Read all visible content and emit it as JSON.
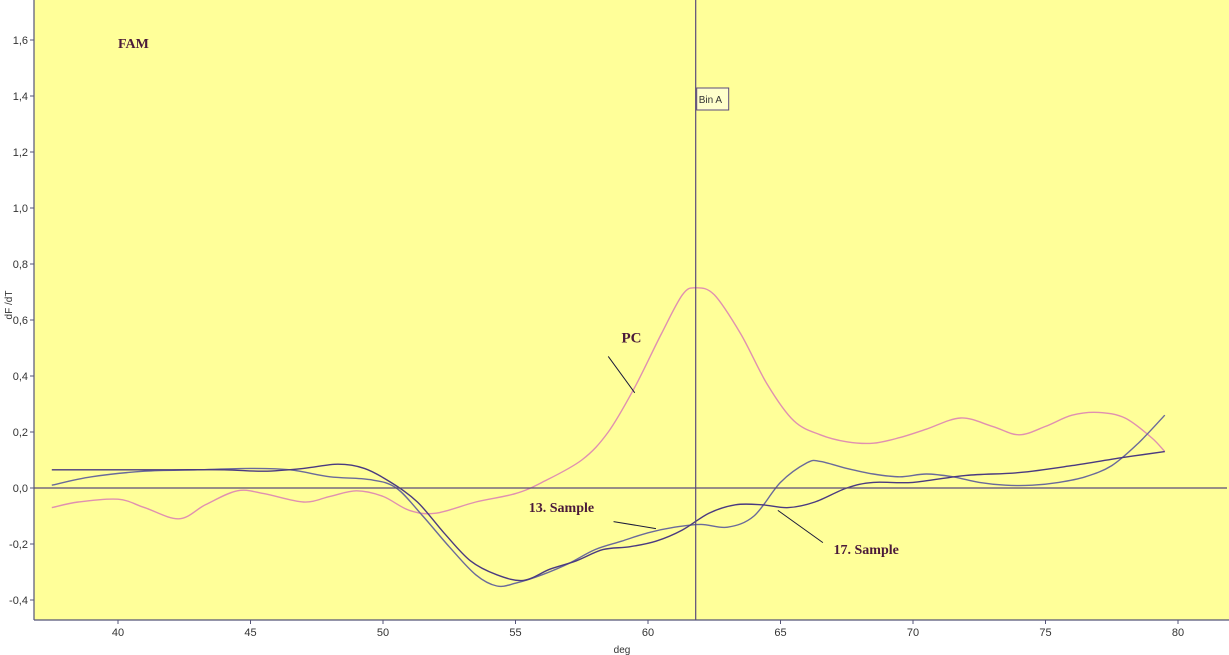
{
  "chart_data": {
    "type": "line",
    "title": "FAM",
    "xlabel": "deg",
    "ylabel": "dF /dT",
    "xlim": [
      37.5,
      80.8
    ],
    "ylim": [
      -0.47,
      1.7
    ],
    "x_ticks": [
      40,
      45,
      50,
      55,
      60,
      65,
      70,
      75,
      80
    ],
    "x_tick_labels": [
      "40",
      "45",
      "50",
      "55",
      "60",
      "65",
      "70",
      "75",
      "80"
    ],
    "y_ticks": [
      -0.4,
      -0.2,
      0.0,
      0.2,
      0.4,
      0.6,
      0.8,
      1.0,
      1.2,
      1.4,
      1.6
    ],
    "y_tick_labels": [
      "-0,4",
      "-0,2",
      "0,0",
      "0,2",
      "0,4",
      "0,6",
      "0,8",
      "1,0",
      "1,2",
      "1,4",
      "1,6"
    ],
    "grid": false,
    "background": "#ffff99",
    "marker": {
      "label": "Bin A",
      "x": 61.8
    },
    "zero_line": 0.0,
    "series": [
      {
        "name": "PC",
        "color": "#e090b0",
        "points": [
          [
            37.5,
            -0.07
          ],
          [
            38.5,
            -0.05
          ],
          [
            40,
            -0.04
          ],
          [
            41,
            -0.07
          ],
          [
            42.3,
            -0.11
          ],
          [
            43.3,
            -0.06
          ],
          [
            44.5,
            -0.01
          ],
          [
            45.5,
            -0.02
          ],
          [
            47,
            -0.05
          ],
          [
            48,
            -0.03
          ],
          [
            49,
            -0.01
          ],
          [
            50,
            -0.03
          ],
          [
            51,
            -0.08
          ],
          [
            52,
            -0.09
          ],
          [
            53.5,
            -0.05
          ],
          [
            55,
            -0.02
          ],
          [
            56,
            0.02
          ],
          [
            57.5,
            0.1
          ],
          [
            58.5,
            0.2
          ],
          [
            59.5,
            0.36
          ],
          [
            60.5,
            0.55
          ],
          [
            61.3,
            0.69
          ],
          [
            61.8,
            0.715
          ],
          [
            62.5,
            0.69
          ],
          [
            63.5,
            0.55
          ],
          [
            64.5,
            0.37
          ],
          [
            65.5,
            0.24
          ],
          [
            66.5,
            0.19
          ],
          [
            67.5,
            0.165
          ],
          [
            68.5,
            0.16
          ],
          [
            69.5,
            0.18
          ],
          [
            70.5,
            0.21
          ],
          [
            71.8,
            0.25
          ],
          [
            73,
            0.22
          ],
          [
            74,
            0.19
          ],
          [
            75,
            0.22
          ],
          [
            76,
            0.26
          ],
          [
            77,
            0.27
          ],
          [
            78,
            0.25
          ],
          [
            79,
            0.18
          ],
          [
            79.5,
            0.13
          ]
        ]
      },
      {
        "name": "13. Sample",
        "color": "#6a6a9a",
        "points": [
          [
            37.5,
            0.01
          ],
          [
            39,
            0.04
          ],
          [
            41,
            0.06
          ],
          [
            43,
            0.065
          ],
          [
            45,
            0.07
          ],
          [
            46.5,
            0.065
          ],
          [
            48,
            0.04
          ],
          [
            49.5,
            0.03
          ],
          [
            50.5,
            0.0
          ],
          [
            51.5,
            -0.1
          ],
          [
            52.5,
            -0.21
          ],
          [
            53.5,
            -0.31
          ],
          [
            54.3,
            -0.35
          ],
          [
            55,
            -0.34
          ],
          [
            56,
            -0.31
          ],
          [
            57,
            -0.27
          ],
          [
            58,
            -0.22
          ],
          [
            59,
            -0.19
          ],
          [
            60,
            -0.16
          ],
          [
            61,
            -0.14
          ],
          [
            62,
            -0.13
          ],
          [
            63,
            -0.14
          ],
          [
            64,
            -0.1
          ],
          [
            65,
            0.02
          ],
          [
            66,
            0.09
          ],
          [
            66.5,
            0.095
          ],
          [
            67.5,
            0.07
          ],
          [
            68.5,
            0.05
          ],
          [
            69.5,
            0.04
          ],
          [
            70.5,
            0.05
          ],
          [
            71.5,
            0.04
          ],
          [
            72.5,
            0.02
          ],
          [
            73.5,
            0.01
          ],
          [
            74.5,
            0.01
          ],
          [
            75.5,
            0.02
          ],
          [
            76.5,
            0.04
          ],
          [
            77.5,
            0.08
          ],
          [
            78.5,
            0.16
          ],
          [
            79.5,
            0.26
          ]
        ]
      },
      {
        "name": "17. Sample",
        "color": "#4a3a80",
        "points": [
          [
            37.5,
            0.065
          ],
          [
            40,
            0.065
          ],
          [
            42,
            0.065
          ],
          [
            44,
            0.065
          ],
          [
            45.5,
            0.06
          ],
          [
            47,
            0.07
          ],
          [
            48.3,
            0.085
          ],
          [
            49.3,
            0.07
          ],
          [
            50.3,
            0.02
          ],
          [
            51.3,
            -0.05
          ],
          [
            52.3,
            -0.16
          ],
          [
            53.3,
            -0.26
          ],
          [
            54.3,
            -0.31
          ],
          [
            55.3,
            -0.33
          ],
          [
            56.3,
            -0.29
          ],
          [
            57.3,
            -0.26
          ],
          [
            58.3,
            -0.22
          ],
          [
            59.3,
            -0.21
          ],
          [
            60.3,
            -0.19
          ],
          [
            61.3,
            -0.15
          ],
          [
            62.3,
            -0.09
          ],
          [
            63.3,
            -0.06
          ],
          [
            64.3,
            -0.06
          ],
          [
            65.3,
            -0.07
          ],
          [
            66.3,
            -0.05
          ],
          [
            67.5,
            0.0
          ],
          [
            68.5,
            0.02
          ],
          [
            70,
            0.02
          ],
          [
            72,
            0.045
          ],
          [
            74,
            0.055
          ],
          [
            76,
            0.08
          ],
          [
            78,
            0.11
          ],
          [
            79.5,
            0.13
          ]
        ]
      }
    ],
    "annotations": [
      {
        "text": "PC",
        "x": 59.0,
        "y": 0.52,
        "size": 15,
        "line_to": [
          59.5,
          0.34
        ],
        "line_from": [
          58.5,
          0.47
        ]
      },
      {
        "text": "13. Sample",
        "x": 55.5,
        "y": -0.085,
        "size": 14,
        "line_to": [
          60.3,
          -0.145
        ],
        "line_from": [
          58.7,
          -0.12
        ]
      },
      {
        "text": "17. Sample",
        "x": 67.0,
        "y": -0.235,
        "size": 14,
        "line_to": [
          64.9,
          -0.08
        ],
        "line_from": [
          66.6,
          -0.195
        ]
      }
    ]
  }
}
